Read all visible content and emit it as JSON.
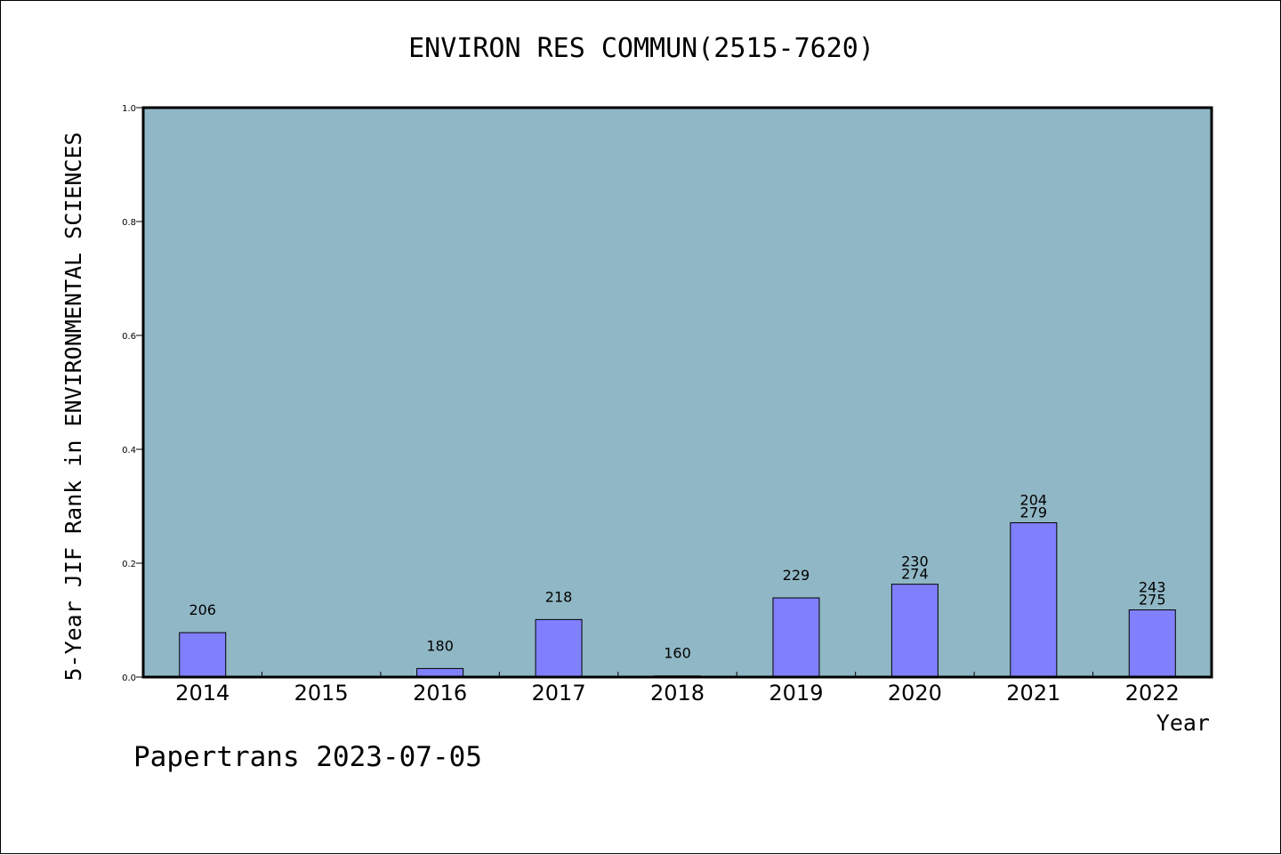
{
  "colors": {
    "plot_background": "#90b7c5",
    "bar_fill": "#8080ff",
    "bar_stroke": "#000000"
  },
  "footer": "Papertrans 2023-07-05",
  "chart_data": {
    "type": "bar",
    "title": "ENVIRON RES COMMUN(2515-7620)",
    "xlabel": "Year",
    "ylabel": "5-Year JIF Rank in ENVIRONMENTAL SCIENCES",
    "ylim": [
      0,
      1.0
    ],
    "yticks": [
      "0.0",
      "0.2",
      "0.4",
      "0.6",
      "0.8",
      "1.0"
    ],
    "grid": false,
    "categories": [
      "2014",
      "2015",
      "2016",
      "2017",
      "2018",
      "2019",
      "2020",
      "2021",
      "2022"
    ],
    "values": [
      0.078,
      0,
      0.015,
      0.101,
      0.002,
      0.139,
      0.163,
      0.271,
      0.118
    ],
    "data_labels": [
      [
        "206"
      ],
      [],
      [
        "180"
      ],
      [
        "218"
      ],
      [
        "160"
      ],
      [
        "229"
      ],
      [
        "230",
        "274"
      ],
      [
        "204",
        "279"
      ],
      [
        "243",
        "275"
      ]
    ]
  }
}
